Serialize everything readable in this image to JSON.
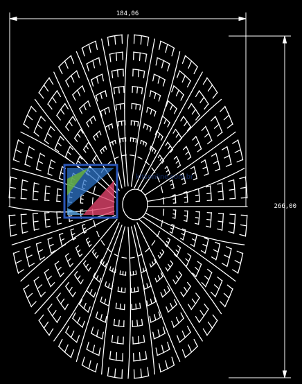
{
  "drawing": {
    "width_dimension": "184,06",
    "height_dimension": "266,00"
  },
  "watermark": {
    "text": "kitsonline.com.br",
    "stripe_colors": [
      "#2f76c9",
      "#69b33a",
      "#e0436b",
      "#5aa7e6"
    ]
  },
  "colors": {
    "background": "#000000",
    "lines": "#ffffff",
    "logo_frame": "#2a56b8"
  }
}
